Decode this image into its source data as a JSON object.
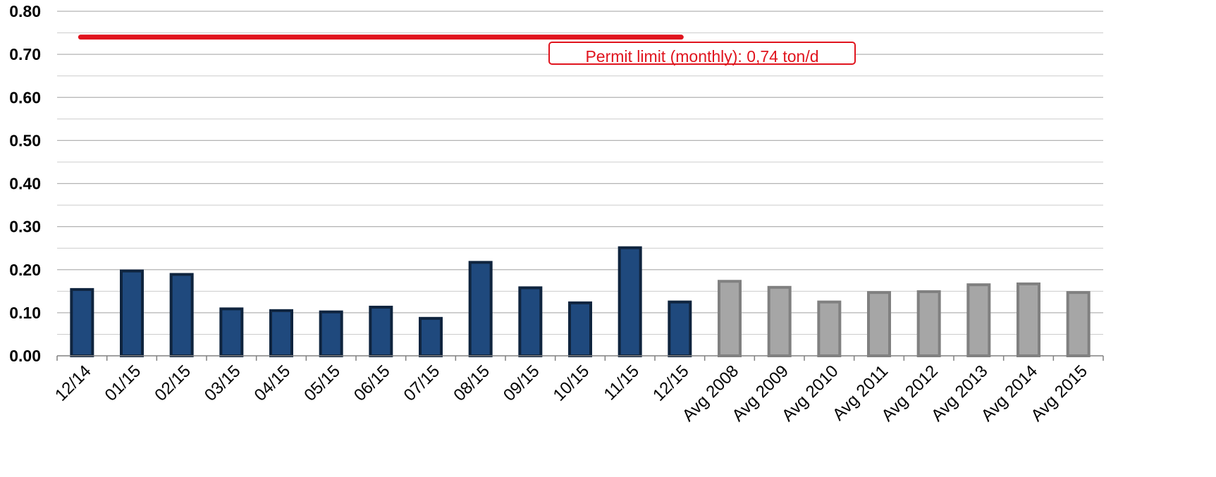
{
  "chart_data": {
    "type": "bar",
    "categories": [
      "12/14",
      "01/15",
      "02/15",
      "03/15",
      "04/15",
      "05/15",
      "06/15",
      "07/15",
      "08/15",
      "09/15",
      "10/15",
      "11/15",
      "12/15",
      "Avg 2008",
      "Avg 2009",
      "Avg 2010",
      "Avg 2011",
      "Avg 2012",
      "Avg 2013",
      "Avg 2014",
      "Avg 2015"
    ],
    "values": [
      0.154,
      0.197,
      0.189,
      0.109,
      0.105,
      0.102,
      0.113,
      0.087,
      0.217,
      0.158,
      0.123,
      0.251,
      0.125,
      0.173,
      0.159,
      0.125,
      0.147,
      0.149,
      0.165,
      0.167,
      0.147
    ],
    "bar_groups": {
      "monthly": {
        "count": 13,
        "fill": "#1f497d",
        "stroke": "#0f243e"
      },
      "annual_average": {
        "count": 8,
        "fill": "#a6a6a6",
        "stroke": "#808080"
      }
    },
    "title": "",
    "xlabel": "",
    "ylabel": "",
    "ylim": [
      0,
      0.8
    ],
    "yticks": [
      "0.00",
      "0.10",
      "0.20",
      "0.30",
      "0.40",
      "0.50",
      "0.60",
      "0.70",
      "0.80"
    ],
    "minor_gridlines": true,
    "grid": true,
    "reference_line": {
      "value": 0.74,
      "color": "#e0141e",
      "from_category": "12/14",
      "to_category": "12/15"
    },
    "annotation": {
      "text": "Permit limit (monthly): 0,74 ton/d",
      "color": "#e0141e"
    }
  }
}
